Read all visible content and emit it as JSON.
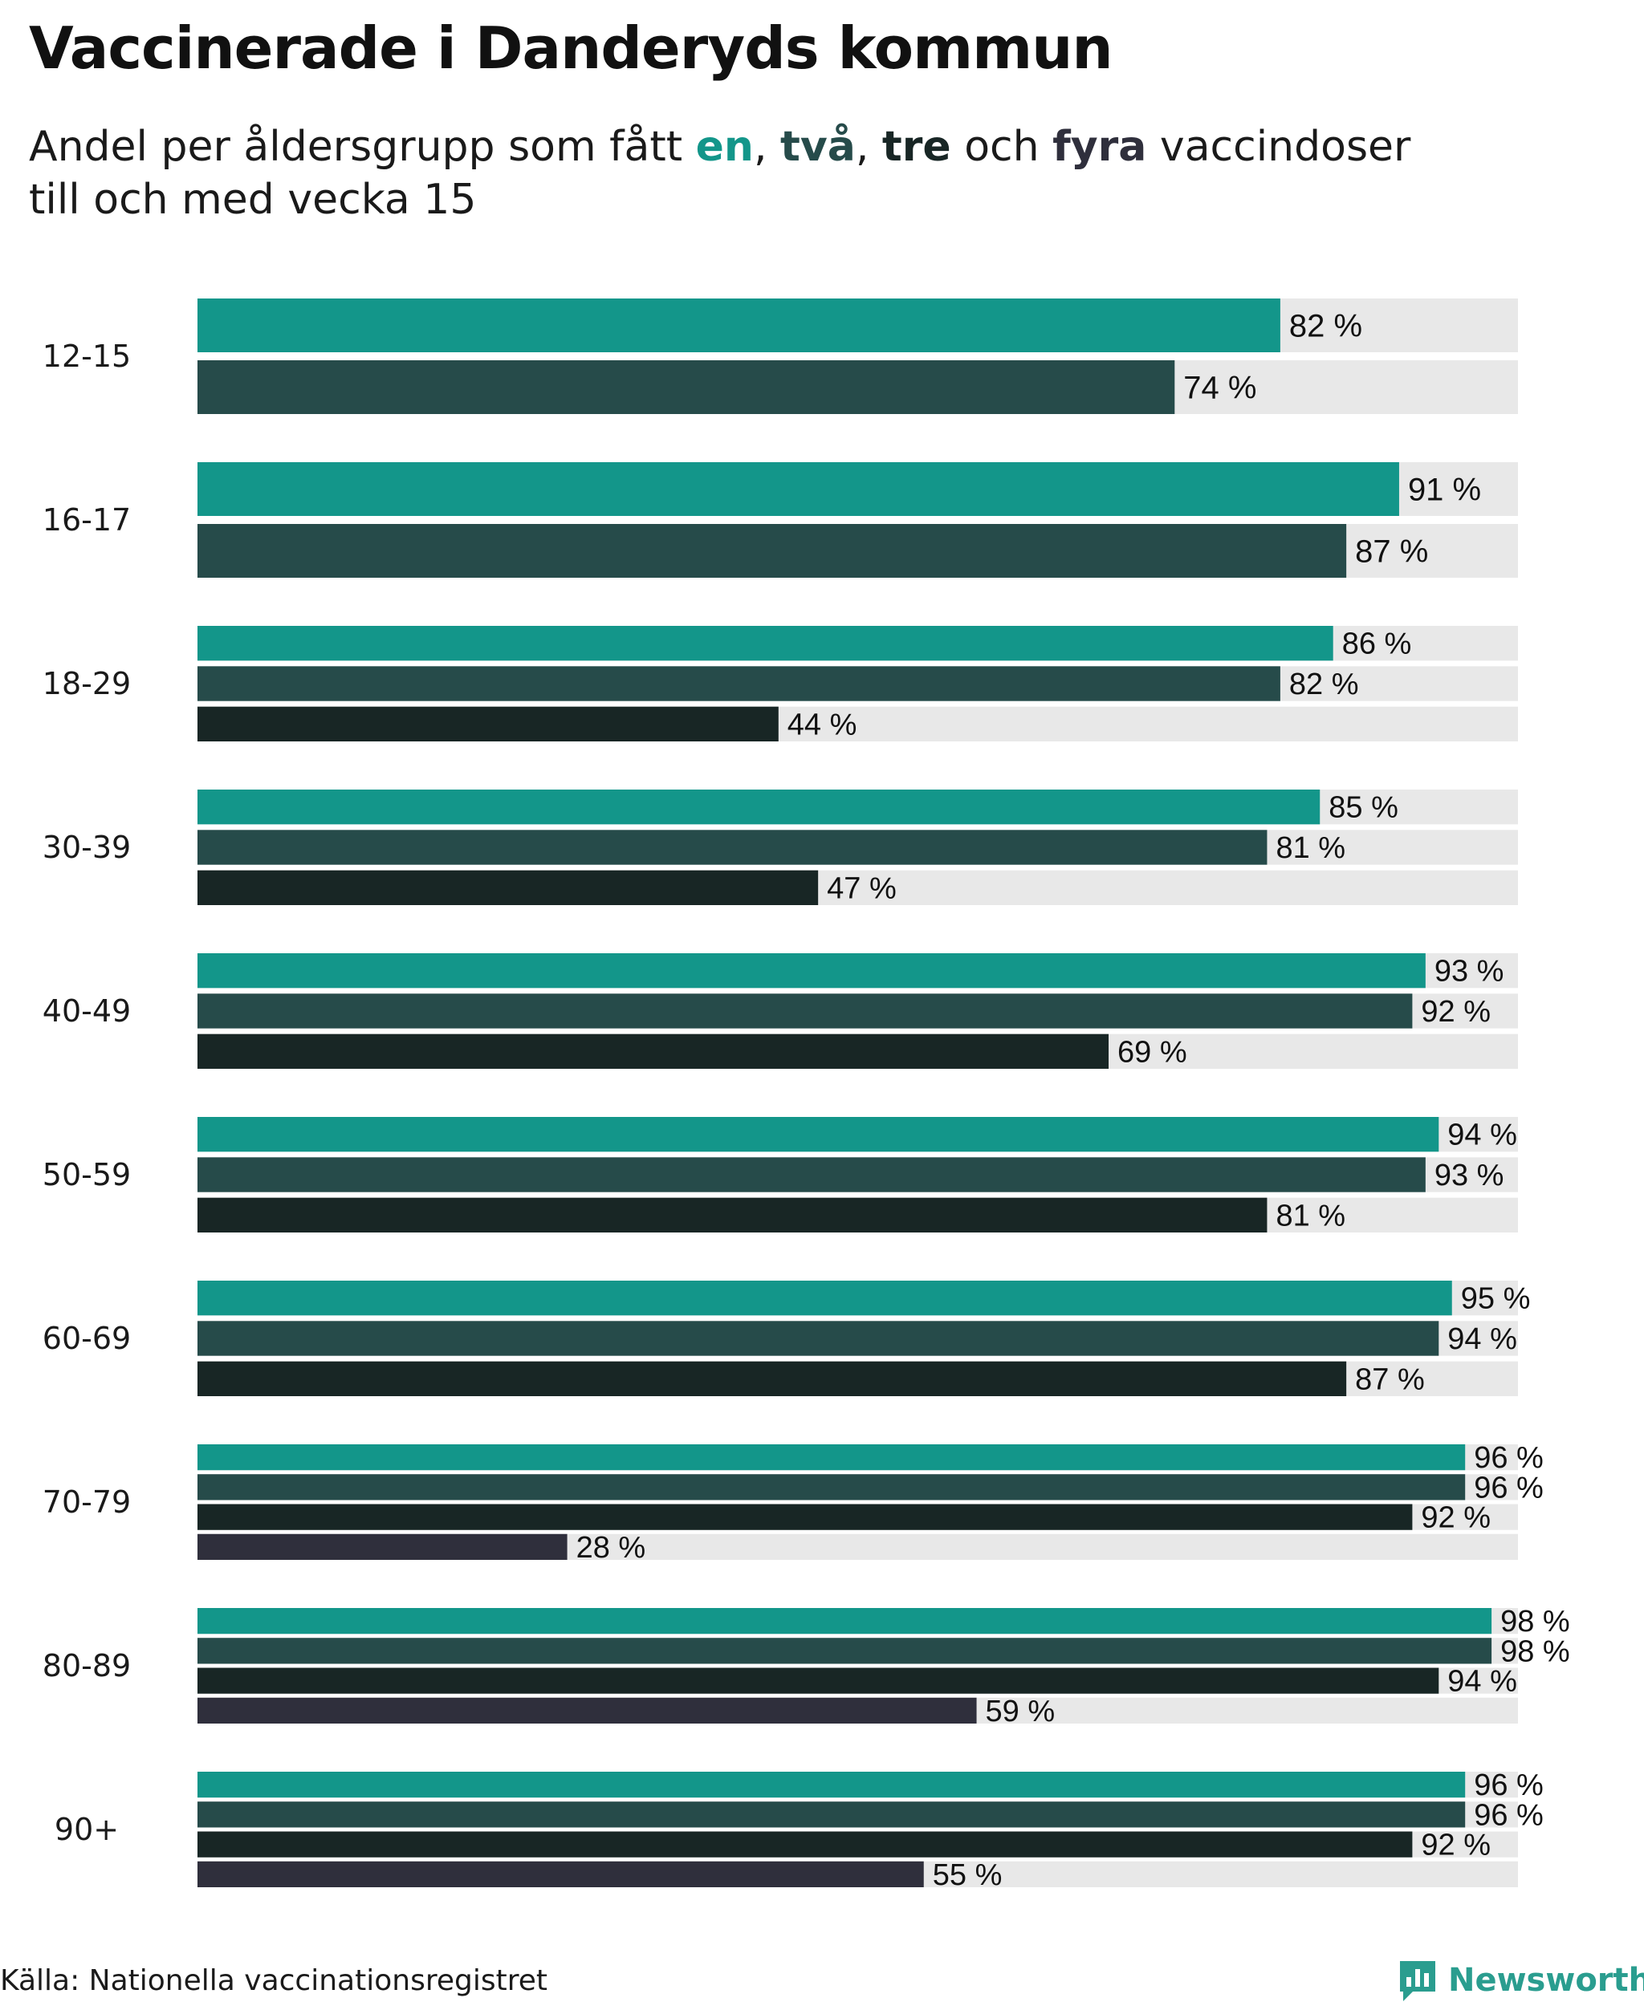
{
  "title": "Vaccinerade i Danderyds kommun",
  "subtitle": {
    "before": "Andel per åldersgrupp som fått ",
    "w1": "en",
    "sep1": ", ",
    "w2": "två",
    "sep2": ", ",
    "w3": "tre",
    "mid": " och ",
    "w4": "fyra",
    "after": " vaccindoser",
    "line2": "till och med vecka 15"
  },
  "source": "Källa: Nationella vaccinationsregistret",
  "brand": "Newsworthy",
  "icons": {
    "brand": "newsworthy-logo-icon"
  },
  "colors": {
    "dose1": "#13968a",
    "dose2": "#264b4a",
    "dose3": "#182625",
    "dose4": "#2f2f3c",
    "track": "#e8e8e8",
    "brand": "#2a9d8f"
  },
  "chart_data": {
    "type": "bar",
    "orientation": "horizontal",
    "xlim": [
      0,
      100
    ],
    "value_suffix": " %",
    "series_names": [
      "en dos",
      "två doser",
      "tre doser",
      "fyra doser"
    ],
    "groups": [
      {
        "label": "12-15",
        "values": [
          82,
          74
        ]
      },
      {
        "label": "16-17",
        "values": [
          91,
          87
        ]
      },
      {
        "label": "18-29",
        "values": [
          86,
          82,
          44
        ]
      },
      {
        "label": "30-39",
        "values": [
          85,
          81,
          47
        ]
      },
      {
        "label": "40-49",
        "values": [
          93,
          92,
          69
        ]
      },
      {
        "label": "50-59",
        "values": [
          94,
          93,
          81
        ]
      },
      {
        "label": "60-69",
        "values": [
          95,
          94,
          87
        ]
      },
      {
        "label": "70-79",
        "values": [
          96,
          96,
          92,
          28
        ]
      },
      {
        "label": "80-89",
        "values": [
          98,
          98,
          94,
          59
        ]
      },
      {
        "label": "90+",
        "values": [
          96,
          96,
          92,
          55
        ]
      }
    ]
  }
}
